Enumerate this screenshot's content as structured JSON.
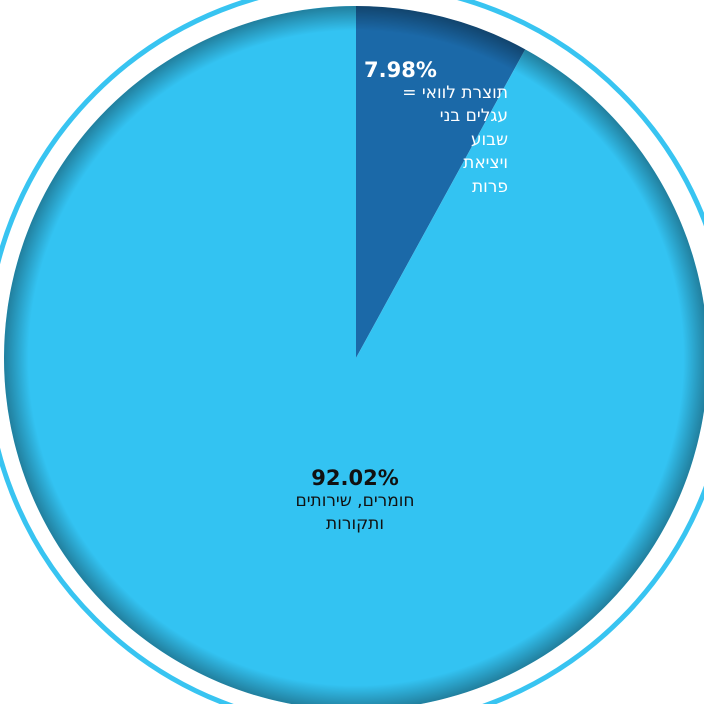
{
  "chart_data": {
    "type": "pie",
    "slices": [
      {
        "label": "תוצרת לוואי =\nעגלים בני\nשבוע\nויציאת\nפרות",
        "value": 7.98,
        "value_label": "7.98%",
        "color": "#1b69a8"
      },
      {
        "label": "חומרים, שירותים\nותקורות",
        "value": 92.02,
        "value_label": "92.02%",
        "color": "#33c3f2"
      }
    ],
    "legend": "none",
    "start": "top"
  }
}
